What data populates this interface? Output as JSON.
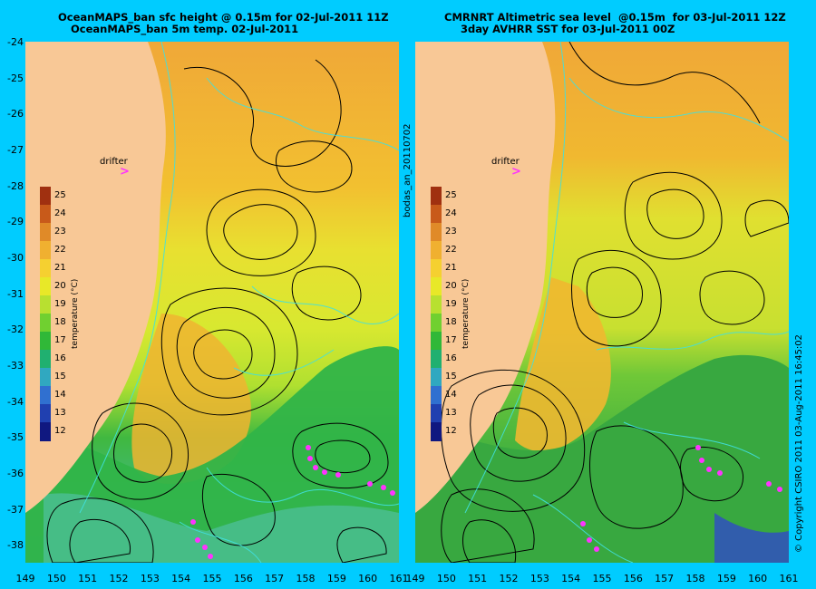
{
  "left": {
    "title_line1": "OceanMAPS_ban sfc height @ 0.15m for 02-Jul-2011 11Z",
    "title_line2": "OceanMAPS_ban 5m temp. 02-Jul-2011",
    "side_label": "bodas_an_20110702"
  },
  "right": {
    "title_line1": "CMRNRT Altimetric sea level  @0.15m  for 03-Jul-2011 12Z",
    "title_line2": "3day AVHRR SST for 03-Jul-2011 00Z",
    "side_label": "© Copyright CSIRO 2011   03-Aug-2011 16:45:02"
  },
  "drifter_label": "drifter",
  "drifter_symbol": ">",
  "y_ticks": [
    "-24",
    "-25",
    "-26",
    "-27",
    "-28",
    "-29",
    "-30",
    "-31",
    "-32",
    "-33",
    "-34",
    "-35",
    "-36",
    "-37",
    "-38"
  ],
  "x_ticks": [
    "149",
    "150",
    "151",
    "152",
    "153",
    "154",
    "155",
    "156",
    "157",
    "158",
    "159",
    "160",
    "161"
  ],
  "colorbar": {
    "title": "temperature (°C)",
    "ticks": [
      "25",
      "24",
      "23",
      "22",
      "21",
      "20",
      "19",
      "18",
      "17",
      "16",
      "15",
      "14",
      "13",
      "12"
    ],
    "colors": [
      "#a03010",
      "#c85a1a",
      "#e08a28",
      "#f0b030",
      "#f5d030",
      "#e8e828",
      "#b8e030",
      "#70d030",
      "#30b838",
      "#20b070",
      "#30a8c0",
      "#3070d0",
      "#2040b0",
      "#101880"
    ]
  },
  "colors": {
    "background": "#00ccff",
    "land": "#f8c896",
    "contour_black": "#000000",
    "contour_cyan": "#40e0e0",
    "drifter": "#ff33ff"
  }
}
